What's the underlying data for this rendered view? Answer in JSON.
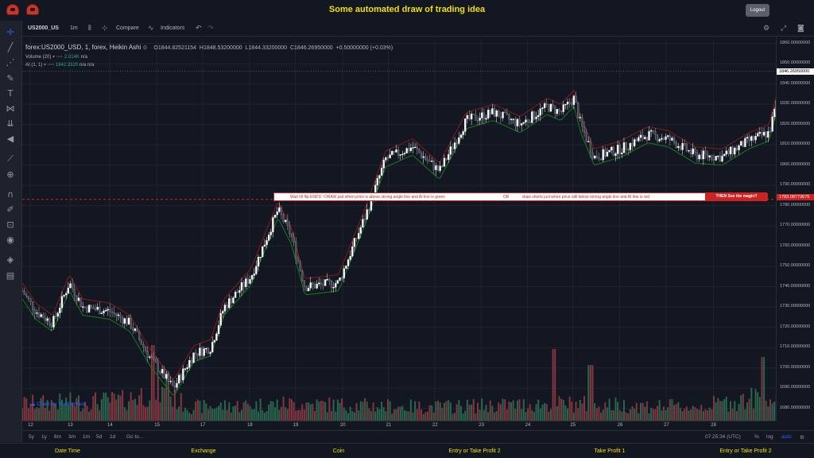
{
  "app": {
    "title": "Some automated draw of trading idea",
    "logout_label": "Logout"
  },
  "toolbar": {
    "symbol": "US2000_US",
    "interval": "1m",
    "compare_label": "Compare",
    "indicators_label": "Indicators"
  },
  "legend": {
    "main": "forex:US2000_USD, 1, forex, Heikin Ashi",
    "open": "O1844.82521154",
    "high": "H1848.53200000",
    "low": "L1844.33200000",
    "close": "C1846.26950000",
    "change": "+0.50000000 (+0.03%)",
    "volume_label": "Volume (20)",
    "volume_value": "2.014K",
    "volume_na": "n/a",
    "ai_label": "AI (1, 1)",
    "ai_value": "1842.3320",
    "ai_na1": "n/a",
    "ai_na2": "n/a"
  },
  "banner": {
    "text1": "Wait till flip ENDS !  DRAW just when price is above strong angle line and AI line is green",
    "text_or": "OR",
    "text2": "draw shorts just when price still below strong angle line and AI line is red",
    "magic": "THEN See the magic!!"
  },
  "price_tags": {
    "current": "1846.26950000",
    "line": "1783.08773679"
  },
  "watermark": "Chart by TradingView",
  "bottom": {
    "ranges": [
      "5y",
      "1y",
      "6m",
      "3m",
      "1m",
      "5d",
      "1d"
    ],
    "goto": "Go to...",
    "time": "07:25:34 (UTC)",
    "percent": "%",
    "log": "log",
    "auto": "auto"
  },
  "footer": {
    "labels": [
      "Date Time",
      "Exchange",
      "Coin",
      "Entry or Take Profit 2",
      "Take Profit 1",
      "Entry or Take Profit 2"
    ]
  },
  "colors": {
    "up": "#d1d4dc",
    "down": "#4a4d57",
    "red_line": "#8b1a1a",
    "green_line": "#1a7a1a",
    "vol_up": "#2e6e53",
    "vol_down": "#8e3a44",
    "accent": "#f0e000"
  },
  "chart_data": {
    "type": "candlestick",
    "price_ticks": [
      "1860.00000000",
      "1850.00000000",
      "1840.00000000",
      "1830.00000000",
      "1820.00000000",
      "1810.00000000",
      "1800.00000000",
      "1790.00000000",
      "1780.00000000",
      "1770.00000000",
      "1760.00000000",
      "1750.00000000",
      "1740.00000000",
      "1730.00000000",
      "1720.00000000",
      "1710.00000000",
      "1700.00000000",
      "1690.00000000",
      "1680.00000000"
    ],
    "ylim": [
      1674,
      1863
    ],
    "x_ticks": [
      "12",
      "13",
      "14",
      "15",
      "17",
      "18",
      "19",
      "20",
      "21",
      "22",
      "23",
      "24",
      "25",
      "26",
      "27",
      "28"
    ],
    "x_tick_index": [
      12,
      71,
      130,
      200,
      268,
      338,
      406,
      476,
      544,
      613,
      682,
      751,
      818,
      888,
      957,
      1027
    ],
    "x_count": 1120,
    "price_keypoints": [
      [
        0,
        1738
      ],
      [
        20,
        1728
      ],
      [
        45,
        1722
      ],
      [
        70,
        1742
      ],
      [
        90,
        1730
      ],
      [
        130,
        1728
      ],
      [
        160,
        1722
      ],
      [
        190,
        1705
      ],
      [
        225,
        1690
      ],
      [
        255,
        1707
      ],
      [
        280,
        1710
      ],
      [
        300,
        1730
      ],
      [
        340,
        1745
      ],
      [
        380,
        1778
      ],
      [
        400,
        1765
      ],
      [
        420,
        1740
      ],
      [
        470,
        1742
      ],
      [
        510,
        1775
      ],
      [
        540,
        1803
      ],
      [
        580,
        1809
      ],
      [
        620,
        1797
      ],
      [
        660,
        1822
      ],
      [
        700,
        1826
      ],
      [
        740,
        1820
      ],
      [
        780,
        1829
      ],
      [
        800,
        1826
      ],
      [
        820,
        1833
      ],
      [
        830,
        1820
      ],
      [
        850,
        1804
      ],
      [
        890,
        1808
      ],
      [
        930,
        1815
      ],
      [
        960,
        1813
      ],
      [
        1000,
        1805
      ],
      [
        1040,
        1804
      ],
      [
        1080,
        1812
      ],
      [
        1110,
        1816
      ],
      [
        1130,
        1842
      ],
      [
        1160,
        1844
      ],
      [
        1180,
        1846
      ]
    ],
    "volume_keypoints": [
      [
        0,
        0.25
      ],
      [
        150,
        0.3
      ],
      [
        200,
        0.45
      ],
      [
        250,
        0.2
      ],
      [
        400,
        0.25
      ],
      [
        600,
        0.2
      ],
      [
        800,
        0.25
      ],
      [
        1000,
        0.2
      ],
      [
        1100,
        0.35
      ],
      [
        1180,
        0.2
      ]
    ],
    "volume_spikes": [
      [
        195,
        0.95
      ],
      [
        215,
        0.6
      ],
      [
        790,
        0.9
      ],
      [
        845,
        0.7
      ],
      [
        1100,
        0.8
      ],
      [
        1140,
        0.65
      ]
    ]
  }
}
